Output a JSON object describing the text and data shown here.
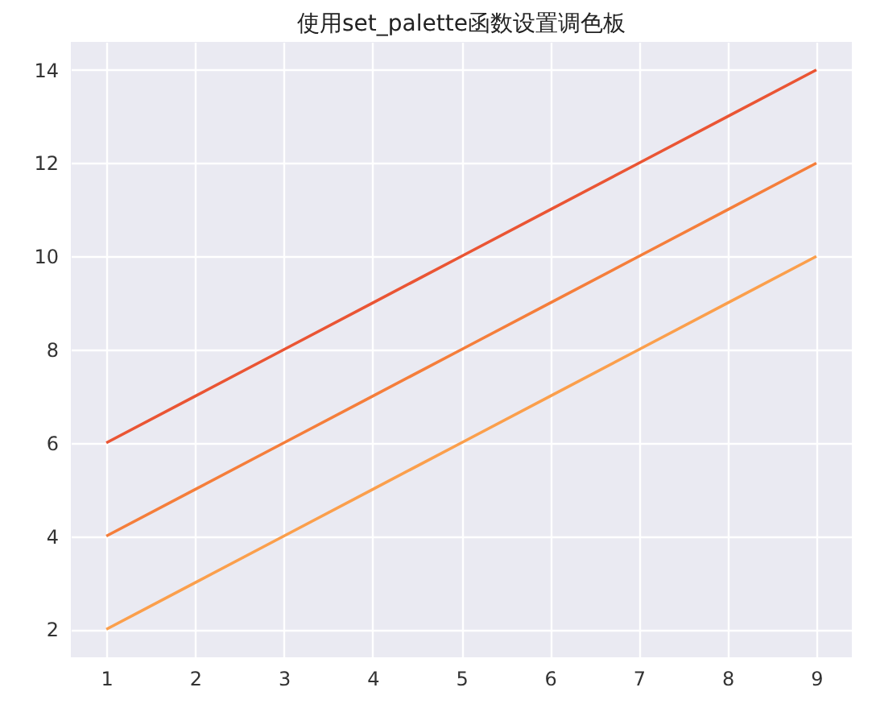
{
  "chart_data": {
    "type": "line",
    "title": "使用set_palette函数设置调色板",
    "x": [
      1,
      2,
      3,
      4,
      5,
      6,
      7,
      8,
      9
    ],
    "series": [
      {
        "color": "#fb9f4c",
        "values": [
          2,
          3,
          4,
          5,
          6,
          7,
          8,
          9,
          10
        ]
      },
      {
        "color": "#f57e3b",
        "values": [
          4,
          5,
          6,
          7,
          8,
          9,
          10,
          11,
          12
        ]
      },
      {
        "color": "#ea5534",
        "values": [
          6,
          7,
          8,
          9,
          10,
          11,
          12,
          13,
          14
        ]
      }
    ],
    "xlim": [
      0.6,
      9.4
    ],
    "ylim": [
      1.4,
      14.6
    ],
    "xticks": [
      1,
      2,
      3,
      4,
      5,
      6,
      7,
      8,
      9
    ],
    "yticks": [
      2,
      4,
      6,
      8,
      10,
      12,
      14
    ],
    "grid": true,
    "legend": false,
    "marker": "none",
    "line_style": "solid"
  }
}
